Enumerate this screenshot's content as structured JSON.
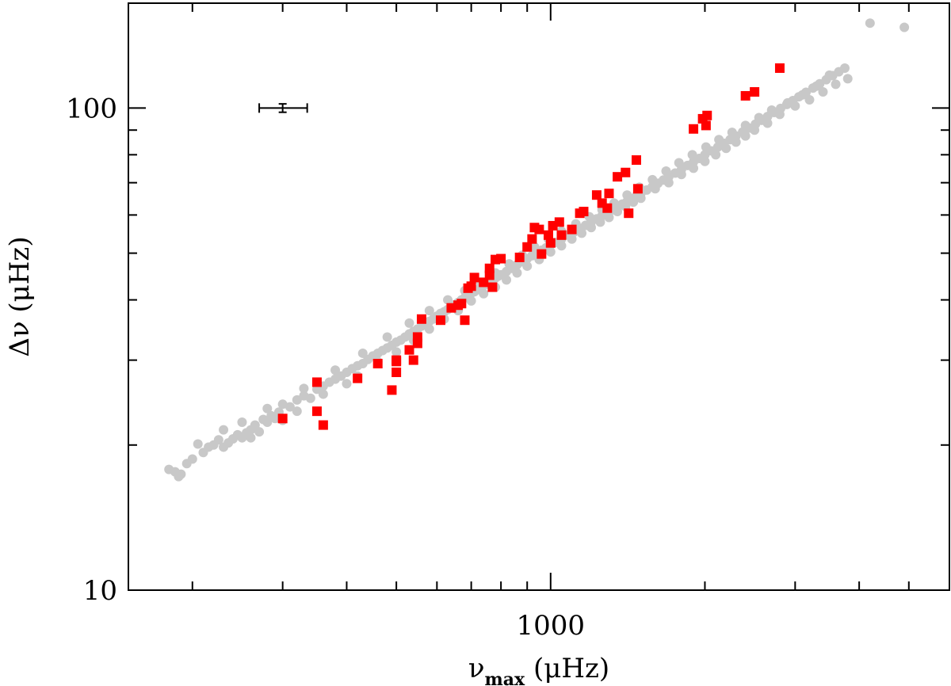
{
  "chart_data": {
    "type": "scatter",
    "x_scale": "log",
    "y_scale": "log",
    "xlim": [
      150,
      6000
    ],
    "ylim": [
      10,
      165
    ],
    "x_ticks": [
      {
        "value": 1000,
        "label": "1000"
      }
    ],
    "y_ticks": [
      {
        "value": 10,
        "label": "10"
      },
      {
        "value": 100,
        "label": "100"
      }
    ],
    "xlabel": {
      "prefix": "ν",
      "subscript": "max",
      "unit": "(μHz)"
    },
    "ylabel": {
      "prefix": "Δν",
      "unit": "(μHz)"
    },
    "grid": false,
    "legend": "none",
    "error_bar": {
      "x": 300,
      "y": 100,
      "x_low": 270,
      "x_high": 335,
      "y_low": 98,
      "y_high": 102
    },
    "series": [
      {
        "marker": "circle",
        "color": "#c8c8c8",
        "points": [
          [
            180,
            17.8
          ],
          [
            185,
            17.6
          ],
          [
            190,
            17.4
          ],
          [
            188,
            17.2
          ],
          [
            195,
            18.3
          ],
          [
            200,
            18.7
          ],
          [
            210,
            19.3
          ],
          [
            205,
            20.1
          ],
          [
            215,
            19.8
          ],
          [
            220,
            20.0
          ],
          [
            225,
            20.5
          ],
          [
            230,
            19.8
          ],
          [
            235,
            20.2
          ],
          [
            240,
            20.6
          ],
          [
            245,
            21.0
          ],
          [
            250,
            20.7
          ],
          [
            255,
            21.2
          ],
          [
            260,
            21.5
          ],
          [
            265,
            22.0
          ],
          [
            270,
            21.3
          ],
          [
            275,
            22.6
          ],
          [
            280,
            22.3
          ],
          [
            285,
            23.0
          ],
          [
            290,
            22.7
          ],
          [
            295,
            23.4
          ],
          [
            300,
            24.3
          ],
          [
            310,
            24.0
          ],
          [
            320,
            24.8
          ],
          [
            330,
            25.3
          ],
          [
            340,
            25.0
          ],
          [
            350,
            26.1
          ],
          [
            360,
            26.5
          ],
          [
            370,
            27.0
          ],
          [
            380,
            27.4
          ],
          [
            390,
            27.8
          ],
          [
            400,
            28.3
          ],
          [
            410,
            28.8
          ],
          [
            420,
            29.2
          ],
          [
            430,
            29.5
          ],
          [
            440,
            30.1
          ],
          [
            450,
            30.6
          ],
          [
            460,
            31.0
          ],
          [
            470,
            31.4
          ],
          [
            480,
            31.8
          ],
          [
            490,
            32.2
          ],
          [
            500,
            32.7
          ],
          [
            510,
            33.0
          ],
          [
            520,
            33.5
          ],
          [
            530,
            34.0
          ],
          [
            540,
            34.4
          ],
          [
            550,
            34.8
          ],
          [
            560,
            35.3
          ],
          [
            570,
            35.6
          ],
          [
            580,
            36.1
          ],
          [
            590,
            36.5
          ],
          [
            600,
            37.0
          ],
          [
            610,
            37.5
          ],
          [
            620,
            37.8
          ],
          [
            630,
            38.2
          ],
          [
            640,
            38.7
          ],
          [
            650,
            39.1
          ],
          [
            660,
            39.5
          ],
          [
            670,
            40.0
          ],
          [
            680,
            40.4
          ],
          [
            690,
            40.9
          ],
          [
            700,
            41.3
          ],
          [
            710,
            41.6
          ],
          [
            720,
            42.0
          ],
          [
            730,
            42.3
          ],
          [
            740,
            42.8
          ],
          [
            750,
            43.1
          ],
          [
            760,
            43.5
          ],
          [
            770,
            44.0
          ],
          [
            780,
            44.4
          ],
          [
            790,
            44.8
          ],
          [
            800,
            45.1
          ],
          [
            820,
            45.8
          ],
          [
            840,
            46.5
          ],
          [
            860,
            47.3
          ],
          [
            880,
            48.0
          ],
          [
            900,
            48.7
          ],
          [
            920,
            49.4
          ],
          [
            940,
            50.1
          ],
          [
            960,
            50.7
          ],
          [
            980,
            51.3
          ],
          [
            1000,
            52.0
          ],
          [
            1020,
            52.6
          ],
          [
            1050,
            53.5
          ],
          [
            1080,
            54.5
          ],
          [
            1110,
            55.3
          ],
          [
            1140,
            56.3
          ],
          [
            1170,
            57.1
          ],
          [
            1200,
            58.0
          ],
          [
            1230,
            58.9
          ],
          [
            1260,
            59.8
          ],
          [
            1290,
            60.7
          ],
          [
            1320,
            61.5
          ],
          [
            1350,
            62.4
          ],
          [
            1380,
            63.2
          ],
          [
            1410,
            64.0
          ],
          [
            1440,
            64.8
          ],
          [
            1470,
            65.7
          ],
          [
            1500,
            66.5
          ],
          [
            1540,
            67.6
          ],
          [
            1580,
            68.7
          ],
          [
            1620,
            69.8
          ],
          [
            1660,
            70.9
          ],
          [
            1700,
            72.0
          ],
          [
            1750,
            73.3
          ],
          [
            1800,
            74.6
          ],
          [
            1850,
            76.0
          ],
          [
            1900,
            77.3
          ],
          [
            1950,
            78.6
          ],
          [
            2000,
            80.0
          ],
          [
            2060,
            81.5
          ],
          [
            2120,
            83.0
          ],
          [
            2180,
            84.5
          ],
          [
            2240,
            86.0
          ],
          [
            2300,
            87.5
          ],
          [
            2370,
            89.2
          ],
          [
            2440,
            90.9
          ],
          [
            2510,
            92.6
          ],
          [
            2580,
            94.3
          ],
          [
            2650,
            96.0
          ],
          [
            2730,
            97.9
          ],
          [
            2810,
            99.8
          ],
          [
            2890,
            101.7
          ],
          [
            2970,
            103.6
          ],
          [
            3050,
            105.5
          ],
          [
            3150,
            107.8
          ],
          [
            3250,
            110.0
          ],
          [
            3350,
            112.3
          ],
          [
            3450,
            114.5
          ],
          [
            3550,
            116.7
          ],
          [
            3650,
            118.9
          ],
          [
            3750,
            121.0
          ],
          [
            230,
            21.5
          ],
          [
            260,
            20.7
          ],
          [
            300,
            22.5
          ],
          [
            320,
            23.5
          ],
          [
            360,
            25.5
          ],
          [
            400,
            26.8
          ],
          [
            420,
            27.8
          ],
          [
            460,
            29.8
          ],
          [
            500,
            31.2
          ],
          [
            540,
            33.0
          ],
          [
            580,
            34.8
          ],
          [
            620,
            36.5
          ],
          [
            660,
            38.0
          ],
          [
            700,
            39.8
          ],
          [
            740,
            41.2
          ],
          [
            780,
            42.5
          ],
          [
            820,
            44.0
          ],
          [
            860,
            45.5
          ],
          [
            900,
            47.0
          ],
          [
            950,
            48.5
          ],
          [
            1000,
            50.3
          ],
          [
            1050,
            51.8
          ],
          [
            1100,
            53.5
          ],
          [
            1150,
            55.0
          ],
          [
            1200,
            56.5
          ],
          [
            1250,
            58.0
          ],
          [
            1300,
            59.3
          ],
          [
            1350,
            61.0
          ],
          [
            1400,
            62.5
          ],
          [
            1450,
            63.8
          ],
          [
            1500,
            65.0
          ],
          [
            1600,
            68.0
          ],
          [
            1700,
            70.0
          ],
          [
            1800,
            72.8
          ],
          [
            1900,
            75.0
          ],
          [
            2000,
            77.5
          ],
          [
            2100,
            80.0
          ],
          [
            2200,
            82.5
          ],
          [
            2300,
            85.0
          ],
          [
            2400,
            87.5
          ],
          [
            2500,
            90.0
          ],
          [
            2650,
            93.0
          ],
          [
            2800,
            97.0
          ],
          [
            3000,
            101.0
          ],
          [
            3200,
            104.0
          ],
          [
            3400,
            108.0
          ],
          [
            3600,
            112.0
          ],
          [
            3800,
            115.0
          ],
          [
            250,
            22.3
          ],
          [
            280,
            23.8
          ],
          [
            330,
            26.2
          ],
          [
            380,
            28.6
          ],
          [
            430,
            31.0
          ],
          [
            480,
            33.5
          ],
          [
            530,
            35.8
          ],
          [
            580,
            38.0
          ],
          [
            630,
            40.0
          ],
          [
            680,
            41.8
          ],
          [
            730,
            43.5
          ],
          [
            780,
            45.5
          ],
          [
            830,
            47.5
          ],
          [
            880,
            49.5
          ],
          [
            930,
            51.5
          ],
          [
            990,
            53.5
          ],
          [
            1050,
            55.5
          ],
          [
            1120,
            57.5
          ],
          [
            1190,
            59.5
          ],
          [
            1260,
            61.5
          ],
          [
            1330,
            63.5
          ],
          [
            1410,
            66.0
          ],
          [
            1490,
            68.5
          ],
          [
            1580,
            71.0
          ],
          [
            1680,
            74.0
          ],
          [
            1780,
            77.0
          ],
          [
            1890,
            80.0
          ],
          [
            2010,
            83.0
          ],
          [
            2130,
            86.0
          ],
          [
            2260,
            89.0
          ],
          [
            2400,
            92.0
          ],
          [
            2550,
            95.5
          ],
          [
            2700,
            99.0
          ],
          [
            2900,
            102.5
          ],
          [
            3100,
            106.5
          ],
          [
            3300,
            111.0
          ],
          [
            3500,
            117.0
          ],
          [
            4200,
            150.0
          ],
          [
            4900,
            147.0
          ]
        ]
      },
      {
        "marker": "square",
        "color": "#ff0000",
        "points": [
          [
            300,
            22.7
          ],
          [
            350,
            27.0
          ],
          [
            350,
            23.5
          ],
          [
            360,
            22.0
          ],
          [
            420,
            27.5
          ],
          [
            460,
            29.5
          ],
          [
            490,
            26.0
          ],
          [
            500,
            30.0
          ],
          [
            500,
            28.3
          ],
          [
            500,
            29.8
          ],
          [
            530,
            31.5
          ],
          [
            540,
            30.0
          ],
          [
            550,
            32.5
          ],
          [
            550,
            33.5
          ],
          [
            560,
            36.5
          ],
          [
            610,
            36.3
          ],
          [
            640,
            38.5
          ],
          [
            660,
            39.0
          ],
          [
            670,
            39.3
          ],
          [
            680,
            36.3
          ],
          [
            690,
            42.3
          ],
          [
            700,
            42.7
          ],
          [
            710,
            44.5
          ],
          [
            740,
            43.5
          ],
          [
            760,
            45.0
          ],
          [
            760,
            46.5
          ],
          [
            770,
            42.5
          ],
          [
            780,
            48.5
          ],
          [
            800,
            48.7
          ],
          [
            870,
            49.0
          ],
          [
            900,
            51.5
          ],
          [
            920,
            53.5
          ],
          [
            930,
            56.5
          ],
          [
            950,
            56.0
          ],
          [
            960,
            49.8
          ],
          [
            990,
            54.5
          ],
          [
            1000,
            52.5
          ],
          [
            1010,
            57.0
          ],
          [
            1040,
            58.0
          ],
          [
            1050,
            54.5
          ],
          [
            1100,
            56.0
          ],
          [
            1140,
            60.5
          ],
          [
            1160,
            61.0
          ],
          [
            1230,
            66.0
          ],
          [
            1260,
            63.5
          ],
          [
            1290,
            62.0
          ],
          [
            1300,
            66.5
          ],
          [
            1350,
            72.0
          ],
          [
            1400,
            73.5
          ],
          [
            1420,
            60.5
          ],
          [
            1470,
            78.0
          ],
          [
            1480,
            68.0
          ],
          [
            1900,
            90.5
          ],
          [
            1980,
            95.0
          ],
          [
            2010,
            92.0
          ],
          [
            2020,
            96.5
          ],
          [
            2400,
            106.0
          ],
          [
            2500,
            108.0
          ],
          [
            2800,
            121.0
          ]
        ]
      }
    ]
  }
}
